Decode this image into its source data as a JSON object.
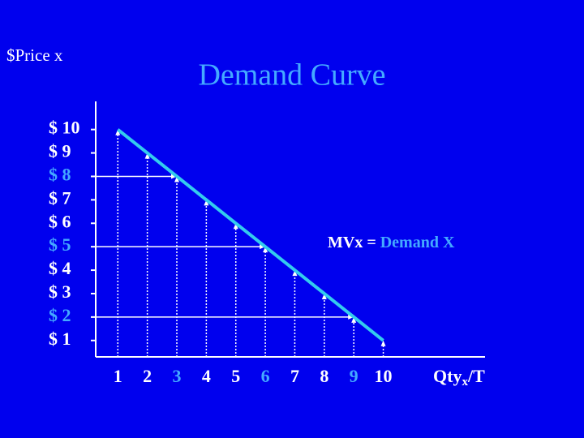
{
  "chart_data": {
    "type": "line",
    "title": "Demand Curve",
    "ylabel": "$Price x",
    "xlabel": [
      "Qty",
      "x",
      "/T"
    ],
    "annotation": [
      "MVx = ",
      "Demand X"
    ],
    "x": [
      1,
      2,
      3,
      4,
      5,
      6,
      7,
      8,
      9,
      10
    ],
    "series": [
      {
        "name": "Demand X",
        "color": "#33ccee",
        "values": [
          10,
          9,
          8,
          7,
          6,
          5,
          4,
          3,
          2,
          1
        ]
      }
    ],
    "xlim": [
      0.25,
      13.45
    ],
    "ylim": [
      0.3,
      11.2
    ],
    "xticks": [
      1,
      2,
      3,
      4,
      5,
      6,
      7,
      8,
      9,
      10
    ],
    "yticks": [
      {
        "value": 10,
        "label": "$ 10"
      },
      {
        "value": 9,
        "label": "$ 9"
      },
      {
        "value": 8,
        "label": "$ 8"
      },
      {
        "value": 7,
        "label": "$ 7"
      },
      {
        "value": 6,
        "label": "$ 6"
      },
      {
        "value": 5,
        "label": "$ 5"
      },
      {
        "value": 4,
        "label": "$ 4"
      },
      {
        "value": 3,
        "label": "$ 3"
      },
      {
        "value": 2,
        "label": "$ 2"
      },
      {
        "value": 1,
        "label": "$ 1"
      }
    ],
    "xtick_colors": [
      "#ffffff",
      "#ffffff",
      "#44aaff",
      "#ffffff",
      "#ffffff",
      "#44aaff",
      "#ffffff",
      "#ffffff",
      "#44aaff",
      "#ffffff"
    ],
    "ytick_colors": [
      "#ffffff",
      "#ffffff",
      "#44aaff",
      "#ffffff",
      "#ffffff",
      "#44aaff",
      "#ffffff",
      "#ffffff",
      "#44aaff",
      "#ffffff"
    ],
    "background": "#0000ee",
    "title_color": "#44aaff"
  }
}
